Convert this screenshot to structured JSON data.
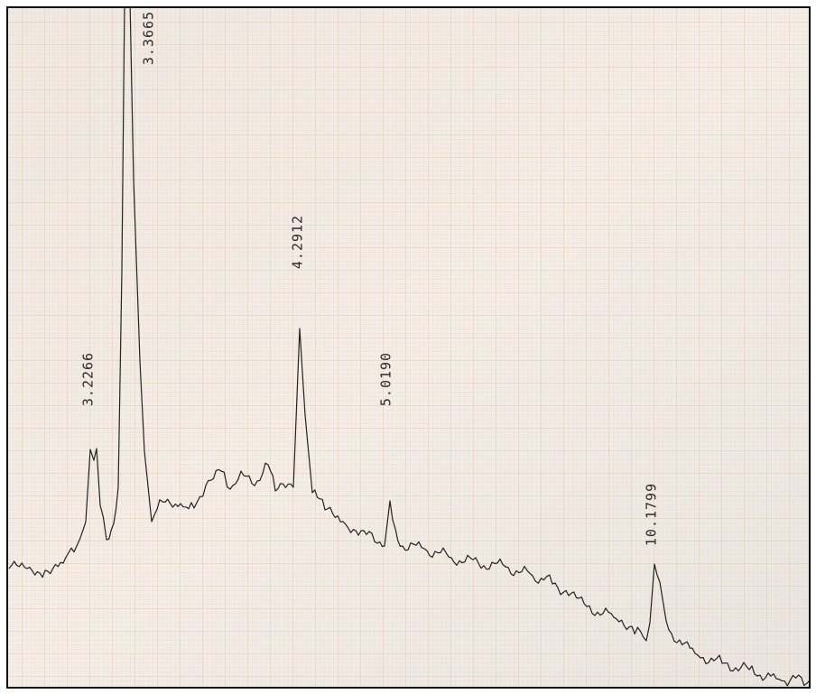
{
  "peak_labels": [
    "3.2266",
    "3.3665",
    "4.2912",
    "5.0190",
    "10.1799"
  ]
}
